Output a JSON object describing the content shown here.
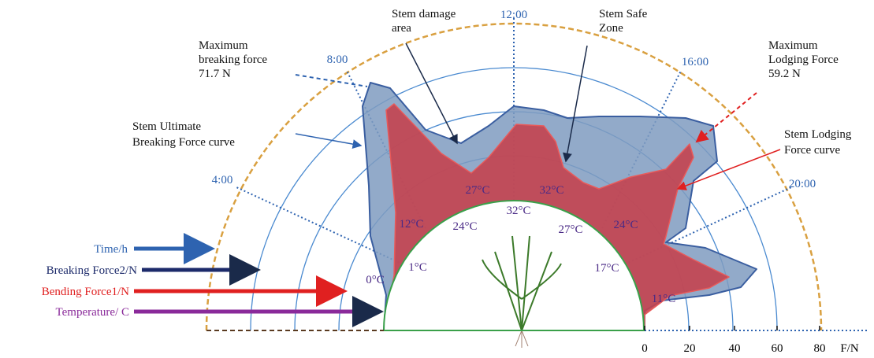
{
  "annotations": {
    "stem_damage": [
      "Stem damage",
      "area"
    ],
    "stem_safe": [
      "Stem Safe",
      "Zone"
    ],
    "max_breaking": [
      "Maximum",
      "breaking force",
      "71.7 N"
    ],
    "max_lodging": [
      "Maximum",
      "Lodging Force",
      "59.2 N"
    ],
    "ultimate_curve": [
      "Stem Ultimate",
      "Breaking Force curve"
    ],
    "lodging_curve": [
      "Stem Lodging",
      "Force curve"
    ]
  },
  "time_labels": [
    "12:00",
    "8:00",
    "16:00",
    "4:00",
    "20:00"
  ],
  "temperature_labels": [
    "0°C",
    "1°C",
    "12°C",
    "24°C",
    "27°C",
    "32°C",
    "32°C",
    "27°C",
    "24°C",
    "17°C",
    "11°C"
  ],
  "legend": [
    "Time/h",
    "Breaking Force2/N",
    "Bending Force1/N",
    "Temperature/ C"
  ],
  "axis": {
    "ticks": [
      "0",
      "20",
      "40",
      "60",
      "80"
    ],
    "label": "F/N"
  }
}
